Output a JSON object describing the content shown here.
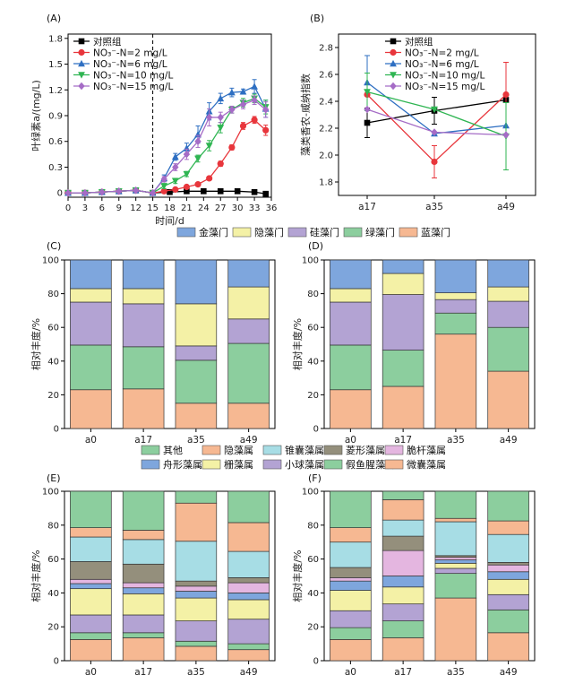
{
  "colors": {
    "control": "#000000",
    "n2": "#e8363c",
    "n6": "#2e6fc2",
    "n10": "#2fb552",
    "n15": "#a56cc6",
    "jinzao": "#7ea6dd",
    "yinzao": "#f4f1a6",
    "guizao": "#b3a3d3",
    "lvzao": "#8cce9e",
    "lanzao": "#f6b892",
    "qita": "#8cce9e",
    "yinqiu": "#f6b892",
    "zhuinang": "#a7dde5",
    "lingxing": "#948f7c",
    "cuigan": "#e4b6e0",
    "zhouxing": "#7ea6dd",
    "shanzao": "#f4f1a6",
    "xiaoqiu": "#b3a3d3",
    "jiayuxing": "#8cce9e",
    "weinang": "#f6b892"
  },
  "chart_data": [
    {
      "id": "A",
      "panel_label": "(A)",
      "type": "line",
      "xlabel": "时间/d",
      "ylabel": "叶绿素a/(mg/L)",
      "xlim": [
        0,
        36
      ],
      "ylim": [
        -0.05,
        1.85
      ],
      "xticks": [
        0,
        3,
        6,
        9,
        12,
        15,
        18,
        21,
        24,
        27,
        30,
        33,
        36
      ],
      "yticks": [
        0,
        0.3,
        0.6,
        0.9,
        1.2,
        1.5,
        1.8
      ],
      "ytick_labels": [
        "0",
        "0.3",
        "0.6",
        "0.9",
        "1.2",
        "1.5",
        "1.8"
      ],
      "vline_x": 15,
      "legend_position": "top-left",
      "series": [
        {
          "name": "对照组",
          "color_key": "control",
          "marker": "square",
          "x": [
            0,
            3,
            6,
            9,
            12,
            15,
            18,
            21,
            24,
            27,
            30,
            33,
            35
          ],
          "y": [
            0,
            0,
            0.01,
            0.02,
            0.03,
            0,
            0.01,
            0.02,
            0.02,
            0.02,
            0.02,
            0.01,
            -0.01
          ],
          "err": [
            0,
            0,
            0,
            0,
            0,
            0,
            0,
            0,
            0,
            0,
            0,
            0,
            0
          ]
        },
        {
          "name": "NO₃⁻-N=2 mg/L",
          "color_key": "n2",
          "marker": "circle",
          "x": [
            0,
            3,
            6,
            9,
            12,
            15,
            17,
            19,
            21,
            23,
            25,
            27,
            29,
            31,
            33,
            35
          ],
          "y": [
            0,
            0,
            0.01,
            0.02,
            0.03,
            0,
            0.02,
            0.04,
            0.07,
            0.1,
            0.17,
            0.34,
            0.53,
            0.78,
            0.85,
            0.73
          ],
          "err": [
            0,
            0,
            0,
            0,
            0,
            0,
            0,
            0,
            0,
            0,
            0.01,
            0.03,
            0.03,
            0.04,
            0.04,
            0.06
          ]
        },
        {
          "name": "NO₃⁻-N=6 mg/L",
          "color_key": "n6",
          "marker": "triangle-up",
          "x": [
            0,
            3,
            6,
            9,
            12,
            15,
            17,
            19,
            21,
            23,
            25,
            27,
            29,
            31,
            33,
            35
          ],
          "y": [
            0,
            0,
            0.01,
            0.02,
            0.03,
            0,
            0.17,
            0.42,
            0.52,
            0.68,
            0.95,
            1.1,
            1.17,
            1.18,
            1.24,
            0.98
          ],
          "err": [
            0,
            0,
            0,
            0,
            0,
            0,
            0.04,
            0.04,
            0.06,
            0.1,
            0.1,
            0.06,
            0.05,
            0.03,
            0.08,
            0.1
          ]
        },
        {
          "name": "NO₃⁻-N=10 mg/L",
          "color_key": "n10",
          "marker": "triangle-down",
          "x": [
            0,
            3,
            6,
            9,
            12,
            15,
            17,
            19,
            21,
            23,
            25,
            27,
            29,
            31,
            33,
            35
          ],
          "y": [
            0,
            0,
            0.01,
            0.02,
            0.03,
            0,
            0.08,
            0.14,
            0.22,
            0.4,
            0.55,
            0.76,
            0.97,
            1.05,
            1.1,
            1.0
          ],
          "err": [
            0,
            0,
            0,
            0,
            0,
            0,
            0.03,
            0.03,
            0.03,
            0.04,
            0.06,
            0.06,
            0.04,
            0.05,
            0.05,
            0.08
          ]
        },
        {
          "name": "NO₃⁻-N=15 mg/L",
          "color_key": "n15",
          "marker": "diamond",
          "x": [
            0,
            3,
            6,
            9,
            12,
            15,
            17,
            19,
            21,
            23,
            25,
            27,
            29,
            31,
            33,
            35
          ],
          "y": [
            0,
            0,
            0.01,
            0.02,
            0.03,
            0,
            0.16,
            0.3,
            0.45,
            0.6,
            0.88,
            0.88,
            0.97,
            1.03,
            1.08,
            0.97
          ],
          "err": [
            0,
            0,
            0,
            0,
            0,
            0,
            0.03,
            0.04,
            0.06,
            0.07,
            0.1,
            0.06,
            0.04,
            0.05,
            0.05,
            0.09
          ]
        }
      ]
    },
    {
      "id": "B",
      "panel_label": "(B)",
      "type": "line",
      "xlabel": "",
      "ylabel": "藻类香农-威纳指数",
      "categories": [
        "a17",
        "a35",
        "a49"
      ],
      "ylim": [
        1.7,
        2.9
      ],
      "yticks": [
        1.8,
        2.0,
        2.2,
        2.4,
        2.6,
        2.8
      ],
      "ytick_labels": [
        "1.8",
        "2.0",
        "2.2",
        "2.4",
        "2.6",
        "2.8"
      ],
      "legend_position": "top-right",
      "series": [
        {
          "name": "对照组",
          "color_key": "control",
          "marker": "square",
          "values": [
            2.24,
            2.33,
            2.41
          ],
          "err": [
            0.11,
            0.1,
            0.0
          ]
        },
        {
          "name": "NO₃⁻-N=2 mg/L",
          "color_key": "n2",
          "marker": "circle",
          "values": [
            2.45,
            1.95,
            2.45
          ],
          "err": [
            0.0,
            0.12,
            0.24
          ]
        },
        {
          "name": "NO₃⁻-N=6 mg/L",
          "color_key": "n6",
          "marker": "triangle-up",
          "values": [
            2.54,
            2.16,
            2.22
          ],
          "err": [
            0.2,
            0.0,
            0.0
          ]
        },
        {
          "name": "NO₃⁻-N=10 mg/L",
          "color_key": "n10",
          "marker": "triangle-down",
          "values": [
            2.47,
            2.34,
            2.14
          ],
          "err": [
            0.14,
            0.0,
            0.25
          ]
        },
        {
          "name": "NO₃⁻-N=15 mg/L",
          "color_key": "n15",
          "marker": "diamond",
          "values": [
            2.34,
            2.17,
            2.15
          ],
          "err": [
            0.0,
            0.0,
            0.0
          ]
        }
      ]
    },
    {
      "id": "C",
      "panel_label": "(C)",
      "type": "bar",
      "stacked": true,
      "ylabel": "相对丰度/%",
      "categories": [
        "a0",
        "a17",
        "a35",
        "a49"
      ],
      "ylim": [
        0,
        100
      ],
      "yticks": [
        0,
        20,
        40,
        60,
        80,
        100
      ],
      "series": [
        {
          "name": "蓝藻门",
          "color_key": "lanzao",
          "values": [
            23,
            23.5,
            15,
            15
          ]
        },
        {
          "name": "绿藻门",
          "color_key": "lvzao",
          "values": [
            26.5,
            25,
            25.5,
            35.5
          ]
        },
        {
          "name": "硅藻门",
          "color_key": "guizao",
          "values": [
            25.5,
            25.5,
            8.5,
            14.5
          ]
        },
        {
          "name": "隐藻门",
          "color_key": "yinzao",
          "values": [
            8,
            9,
            25,
            19
          ]
        },
        {
          "name": "金藻门",
          "color_key": "jinzao",
          "values": [
            17,
            17,
            26,
            16
          ]
        }
      ]
    },
    {
      "id": "D",
      "panel_label": "(D)",
      "type": "bar",
      "stacked": true,
      "ylabel": "相对丰度/%",
      "categories": [
        "a0",
        "a17",
        "a35",
        "a49"
      ],
      "ylim": [
        0,
        100
      ],
      "yticks": [
        0,
        20,
        40,
        60,
        80,
        100
      ],
      "series": [
        {
          "name": "蓝藻门",
          "color_key": "lanzao",
          "values": [
            23,
            25,
            56,
            34
          ]
        },
        {
          "name": "绿藻门",
          "color_key": "lvzao",
          "values": [
            26.5,
            21.5,
            12.5,
            26
          ]
        },
        {
          "name": "硅藻门",
          "color_key": "guizao",
          "values": [
            25.5,
            33,
            8,
            15.5
          ]
        },
        {
          "name": "隐藻门",
          "color_key": "yinzao",
          "values": [
            8,
            12.5,
            4,
            8.5
          ]
        },
        {
          "name": "金藻门",
          "color_key": "jinzao",
          "values": [
            17,
            8,
            19.5,
            16
          ]
        }
      ]
    },
    {
      "id": "E",
      "panel_label": "(E)",
      "type": "bar",
      "stacked": true,
      "ylabel": "相对丰度/%",
      "categories": [
        "a0",
        "a17",
        "a35",
        "a49"
      ],
      "ylim": [
        0,
        100
      ],
      "yticks": [
        0,
        20,
        40,
        60,
        80,
        100
      ],
      "series": [
        {
          "name": "微囊藻属",
          "color_key": "weinang",
          "values": [
            12.5,
            13.5,
            8.5,
            6.5
          ]
        },
        {
          "name": "假鱼腥藻属",
          "color_key": "jiayuxing",
          "values": [
            4,
            3,
            3,
            3.5
          ]
        },
        {
          "name": "小球藻属",
          "color_key": "xiaoqiu",
          "values": [
            10.5,
            10.5,
            12,
            14.5
          ]
        },
        {
          "name": "栅藻属",
          "color_key": "shanzao",
          "values": [
            15.5,
            12.5,
            13.5,
            11.5
          ]
        },
        {
          "name": "舟形藻属",
          "color_key": "zhouxing",
          "values": [
            3,
            3.5,
            4,
            4
          ]
        },
        {
          "name": "脆杆藻属",
          "color_key": "cuigan",
          "values": [
            2.5,
            3,
            3,
            6
          ]
        },
        {
          "name": "菱形藻属",
          "color_key": "lingxing",
          "values": [
            10.5,
            11,
            3,
            3
          ]
        },
        {
          "name": "锥囊藻属",
          "color_key": "zhuinang",
          "values": [
            14.5,
            14.5,
            23.5,
            15.5
          ]
        },
        {
          "name": "隐藻属",
          "color_key": "yinqiu",
          "values": [
            5.5,
            5.5,
            22.5,
            17
          ]
        },
        {
          "name": "其他",
          "color_key": "qita",
          "values": [
            21.5,
            23,
            7,
            18.5
          ]
        }
      ]
    },
    {
      "id": "F",
      "panel_label": "(F)",
      "type": "bar",
      "stacked": true,
      "ylabel": "相对丰度/%",
      "categories": [
        "a0",
        "a17",
        "a35",
        "a49"
      ],
      "ylim": [
        0,
        100
      ],
      "yticks": [
        0,
        20,
        40,
        60,
        80,
        100
      ],
      "series": [
        {
          "name": "微囊藻属",
          "color_key": "weinang",
          "values": [
            12.5,
            13.5,
            37,
            16.5
          ]
        },
        {
          "name": "假鱼腥藻属",
          "color_key": "jiayuxing",
          "values": [
            7,
            10,
            14.5,
            13.5
          ]
        },
        {
          "name": "小球藻属",
          "color_key": "xiaoqiu",
          "values": [
            10,
            10,
            3,
            9
          ]
        },
        {
          "name": "栅藻属",
          "color_key": "shanzao",
          "values": [
            12,
            10,
            3,
            9
          ]
        },
        {
          "name": "舟形藻属",
          "color_key": "zhouxing",
          "values": [
            5.5,
            6.5,
            2,
            4.5
          ]
        },
        {
          "name": "脆杆藻属",
          "color_key": "cuigan",
          "values": [
            2,
            15,
            1.5,
            4
          ]
        },
        {
          "name": "菱形藻属",
          "color_key": "lingxing",
          "values": [
            6,
            8.5,
            1,
            1.5
          ]
        },
        {
          "name": "锥囊藻属",
          "color_key": "zhuinang",
          "values": [
            15,
            9.5,
            20,
            16.5
          ]
        },
        {
          "name": "隐藻属",
          "color_key": "yinqiu",
          "values": [
            8.5,
            12,
            2,
            8
          ]
        },
        {
          "name": "其他",
          "color_key": "qita",
          "values": [
            21.5,
            5,
            16,
            17.5
          ]
        }
      ]
    }
  ],
  "legends": {
    "phylum": {
      "entries": [
        {
          "name": "金藻门",
          "color_key": "jinzao"
        },
        {
          "name": "隐藻门",
          "color_key": "yinzao"
        },
        {
          "name": "硅藻门",
          "color_key": "guizao"
        },
        {
          "name": "绿藻门",
          "color_key": "lvzao"
        },
        {
          "name": "蓝藻门",
          "color_key": "lanzao"
        }
      ]
    },
    "genus": {
      "row1": [
        {
          "name": "其他",
          "color_key": "qita"
        },
        {
          "name": "隐藻属",
          "color_key": "yinqiu"
        },
        {
          "name": "锥囊藻属",
          "color_key": "zhuinang"
        },
        {
          "name": "菱形藻属",
          "color_key": "lingxing"
        },
        {
          "name": "脆杆藻属",
          "color_key": "cuigan"
        }
      ],
      "row2": [
        {
          "name": "舟形藻属",
          "color_key": "zhouxing"
        },
        {
          "name": "栅藻属",
          "color_key": "shanzao"
        },
        {
          "name": "小球藻属",
          "color_key": "xiaoqiu"
        },
        {
          "name": "假鱼腥藻属",
          "color_key": "jiayuxing"
        },
        {
          "name": "微囊藻属",
          "color_key": "weinang"
        }
      ]
    }
  }
}
